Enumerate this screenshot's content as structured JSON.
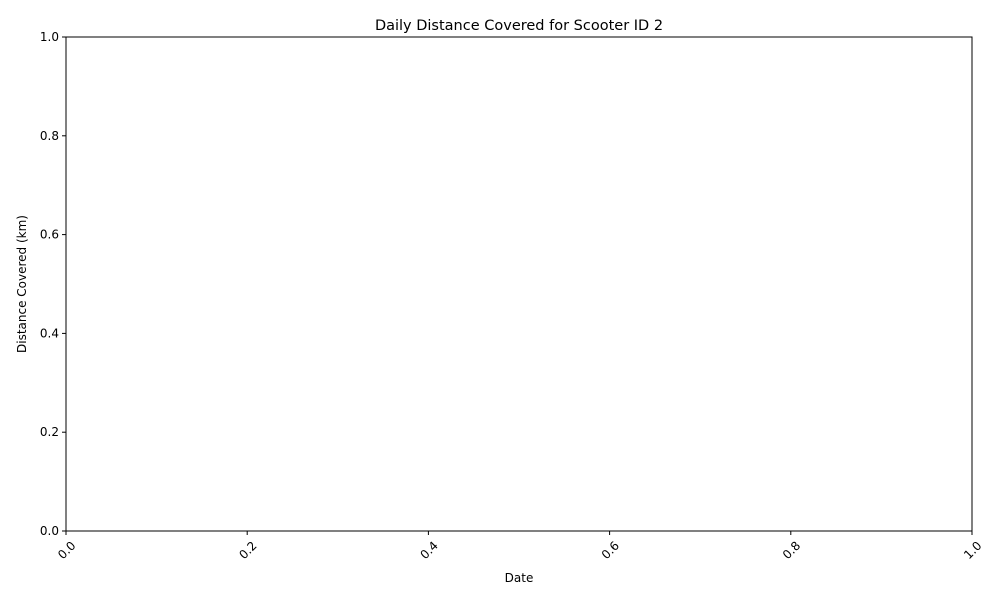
{
  "chart_data": {
    "type": "line",
    "title": "Daily Distance Covered for Scooter ID 2",
    "xlabel": "Date",
    "ylabel": "Distance Covered (km)",
    "xlim": [
      0,
      1
    ],
    "ylim": [
      0,
      1
    ],
    "x_ticks": [
      "0.0",
      "0.2",
      "0.4",
      "0.6",
      "0.8",
      "1.0"
    ],
    "y_ticks": [
      "0.0",
      "0.2",
      "0.4",
      "0.6",
      "0.8",
      "1.0"
    ],
    "x_tick_rotation": -45,
    "grid": false,
    "legend": "none",
    "series": [],
    "colors": {
      "axis": "#000000",
      "background": "#ffffff"
    }
  }
}
